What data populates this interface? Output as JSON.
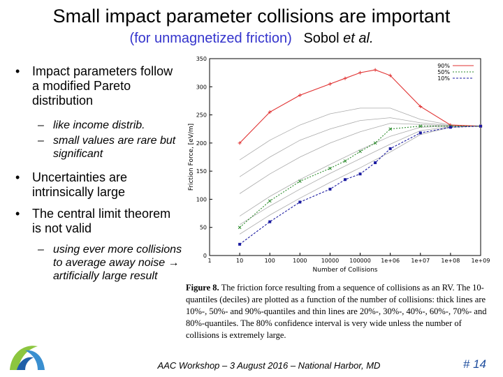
{
  "slide": {
    "title": "Small impact parameter collisions are important",
    "subtitle_paren": "(for unmagnetized friction)",
    "subtitle_author": "Sobol",
    "subtitle_etal": "et al.",
    "page_number": "# 14",
    "footer": "AAC Workshop – 3 August 2016 – National Harbor, MD"
  },
  "bullets": [
    {
      "text": "Impact parameters follow a modified Pareto distribution",
      "subs": [
        "like income distrib.",
        "small values are rare but significant"
      ]
    },
    {
      "text": "Uncertainties are intrinsically large",
      "subs": []
    },
    {
      "text": "The central limit theorem is not valid",
      "subs": [
        "using ever more collisions to average away noise → artificially large result"
      ]
    }
  ],
  "caption": {
    "label": "Figure 8.",
    "text": "The friction force resulting from a sequence of collisions as an RV. The 10-quantiles (deciles) are plotted as a function of the number of collisions: thick lines are 10%-, 50%- and 90%-quantiles and thin lines are 20%-, 30%-, 40%-, 60%-, 70%- and 80%-quantiles. The 80% confidence interval is very wide unless the number of collisions is extremely large."
  },
  "colors": {
    "q90": "#e03030",
    "q50": "#2a8a2a",
    "q10": "#1a1aa0",
    "thin": "#aaaaaa",
    "pagenum": "#1f4e9e"
  },
  "chart_data": {
    "type": "line",
    "xlabel": "Number of Collisions",
    "ylabel": "Friction Force, [eV/m]",
    "x_ticks": [
      "1",
      "10",
      "100",
      "1000",
      "10000",
      "100000",
      "1e+06",
      "1e+07",
      "1e+08",
      "1e+09"
    ],
    "ylim": [
      0,
      350
    ],
    "y_ticks": [
      0,
      50,
      100,
      150,
      200,
      250,
      300,
      350
    ],
    "legend_position": "top-right",
    "series": [
      {
        "name": "90%",
        "style": "q90",
        "x": [
          1,
          2,
          3,
          4,
          4.5,
          5,
          5.5,
          6,
          7,
          8,
          9
        ],
        "values": [
          200,
          255,
          285,
          305,
          315,
          325,
          330,
          320,
          265,
          232,
          230
        ]
      },
      {
        "name": "80%",
        "style": "thin",
        "x": [
          1,
          2,
          3,
          4,
          5,
          6,
          7,
          8,
          9
        ],
        "values": [
          170,
          205,
          232,
          252,
          262,
          262,
          242,
          232,
          230
        ]
      },
      {
        "name": "70%",
        "style": "thin",
        "x": [
          1,
          2,
          3,
          4,
          5,
          6,
          7,
          8,
          9
        ],
        "values": [
          140,
          175,
          205,
          225,
          240,
          245,
          236,
          231,
          230
        ]
      },
      {
        "name": "60%",
        "style": "thin",
        "x": [
          1,
          2,
          3,
          4,
          5,
          6,
          7,
          8,
          9
        ],
        "values": [
          110,
          145,
          175,
          200,
          220,
          235,
          233,
          230,
          230
        ]
      },
      {
        "name": "50%",
        "style": "q50",
        "x": [
          1,
          2,
          3,
          4,
          4.5,
          5,
          5.5,
          6,
          7,
          8,
          9
        ],
        "values": [
          50,
          97,
          132,
          155,
          168,
          185,
          200,
          225,
          230,
          230,
          230
        ]
      },
      {
        "name": "40%",
        "style": "thin",
        "x": [
          1,
          2,
          3,
          4,
          5,
          6,
          7,
          8,
          9
        ],
        "values": [
          70,
          105,
          135,
          162,
          188,
          212,
          228,
          230,
          230
        ]
      },
      {
        "name": "30%",
        "style": "thin",
        "x": [
          1,
          2,
          3,
          4,
          5,
          6,
          7,
          8,
          9
        ],
        "values": [
          55,
          88,
          118,
          146,
          172,
          198,
          222,
          229,
          230
        ]
      },
      {
        "name": "20%",
        "style": "thin",
        "x": [
          1,
          2,
          3,
          4,
          5,
          6,
          7,
          8,
          9
        ],
        "values": [
          38,
          72,
          102,
          130,
          156,
          184,
          215,
          228,
          230
        ]
      },
      {
        "name": "10%",
        "style": "q10",
        "x": [
          1,
          2,
          3,
          4,
          4.5,
          5,
          5.5,
          6,
          7,
          8,
          9
        ],
        "values": [
          20,
          60,
          95,
          118,
          135,
          145,
          165,
          190,
          218,
          228,
          230
        ]
      }
    ],
    "legend": [
      "90%",
      "50%",
      "10%"
    ]
  }
}
